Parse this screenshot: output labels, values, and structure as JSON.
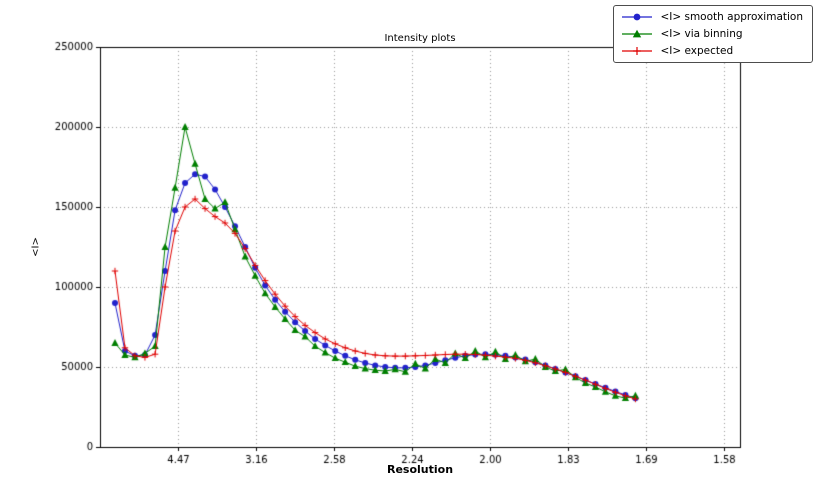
{
  "chart_data": {
    "type": "line",
    "title": "Intensity plots",
    "xlabel": "Resolution",
    "ylabel": "<I>",
    "xlim": [
      0,
      0.41
    ],
    "ylim": [
      0,
      250000
    ],
    "grid": "dotted",
    "legend_position": "upper-right",
    "x_ticks": {
      "positions": [
        0.05,
        0.1,
        0.15,
        0.2,
        0.25,
        0.3,
        0.35,
        0.4
      ],
      "labels": [
        "4.47",
        "3.16",
        "2.58",
        "2.24",
        "2.00",
        "1.83",
        "1.69",
        "1.58"
      ]
    },
    "y_ticks": {
      "positions": [
        0,
        50000,
        100000,
        150000,
        200000,
        250000
      ],
      "labels": [
        "0",
        "50000",
        "100000",
        "150000",
        "200000",
        "250000"
      ]
    },
    "x": [
      0.0096,
      0.016,
      0.0224,
      0.0288,
      0.0353,
      0.0417,
      0.0481,
      0.0545,
      0.0609,
      0.0673,
      0.0737,
      0.0801,
      0.0865,
      0.093,
      0.0994,
      0.1058,
      0.1122,
      0.1186,
      0.125,
      0.1314,
      0.1378,
      0.1443,
      0.1507,
      0.1571,
      0.1635,
      0.1699,
      0.1763,
      0.1827,
      0.1891,
      0.1956,
      0.202,
      0.2084,
      0.2148,
      0.2212,
      0.2276,
      0.234,
      0.2404,
      0.2469,
      0.2533,
      0.2597,
      0.2661,
      0.2725,
      0.2789,
      0.2853,
      0.2917,
      0.2982,
      0.3046,
      0.311,
      0.3174,
      0.3238,
      0.3302,
      0.3366,
      0.343
    ],
    "series": [
      {
        "name": "<I> smooth approximation",
        "color": "#2222cc",
        "marker": "circle",
        "values": [
          90000,
          60000,
          57000,
          57500,
          70000,
          110000,
          148000,
          165000,
          170500,
          169000,
          161000,
          150000,
          138000,
          125000,
          112000,
          101000,
          92000,
          84500,
          78000,
          72500,
          67500,
          63500,
          60000,
          57000,
          54500,
          52500,
          51000,
          50000,
          49500,
          49500,
          50000,
          51000,
          52500,
          54200,
          55800,
          57000,
          57800,
          58000,
          57700,
          57000,
          56000,
          54700,
          53000,
          51000,
          48800,
          46500,
          44200,
          41800,
          39400,
          37000,
          34700,
          32500,
          30500
        ]
      },
      {
        "name": "<I> via binning",
        "color": "#007f00",
        "marker": "triangle",
        "values": [
          65000,
          57500,
          56000,
          58500,
          63000,
          125000,
          162000,
          200000,
          177000,
          155000,
          149000,
          153000,
          136000,
          119000,
          107000,
          96000,
          87500,
          80000,
          73000,
          69000,
          63000,
          59000,
          55500,
          53000,
          50500,
          49000,
          48000,
          47500,
          48500,
          47000,
          52000,
          49000,
          55000,
          52500,
          58500,
          55500,
          60000,
          56000,
          59500,
          55000,
          57500,
          53500,
          55000,
          50000,
          47500,
          48500,
          43500,
          40000,
          37500,
          34500,
          32000,
          30500,
          32000
        ]
      },
      {
        "name": "<I> expected",
        "color": "#e00000",
        "marker": "plus",
        "values": [
          110000,
          62000,
          57000,
          56000,
          58000,
          100000,
          135000,
          150000,
          155000,
          149000,
          144000,
          140000,
          133500,
          124000,
          113500,
          104000,
          95500,
          88000,
          81500,
          76000,
          71500,
          67500,
          64500,
          62000,
          60000,
          58500,
          57500,
          57000,
          56800,
          56800,
          57000,
          57200,
          57500,
          57800,
          58000,
          58000,
          57800,
          57400,
          56800,
          56200,
          55400,
          54200,
          52600,
          50800,
          48800,
          46600,
          44200,
          41800,
          39200,
          36600,
          34200,
          32000,
          30000
        ]
      }
    ]
  }
}
